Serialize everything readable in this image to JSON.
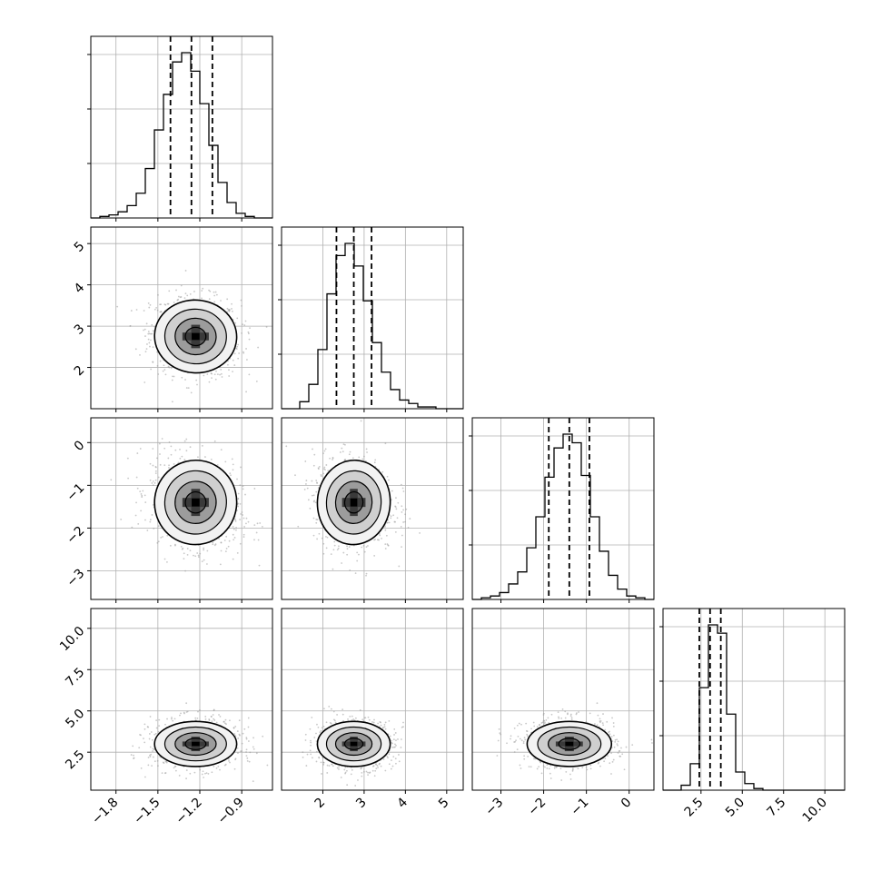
{
  "chart_data": {
    "type": "corner",
    "grid": true,
    "parameters": [
      {
        "index": 0,
        "range": [
          -1.98,
          -0.68
        ],
        "ticks": [
          -1.8,
          -1.5,
          -1.2,
          -0.9
        ],
        "tick_labels": [
          "−1.8",
          "−1.5",
          "−1.2",
          "−0.9"
        ],
        "quantiles": [
          -1.41,
          -1.26,
          -1.11
        ],
        "peak": -1.23,
        "sd": 0.14
      },
      {
        "index": 1,
        "range": [
          1.0,
          5.4
        ],
        "ticks": [
          2,
          3,
          4,
          5
        ],
        "tick_labels": [
          "2",
          "3",
          "4",
          "5"
        ],
        "quantiles": [
          2.33,
          2.75,
          3.18
        ],
        "peak": 2.75,
        "sd": 0.42
      },
      {
        "index": 2,
        "range": [
          -3.67,
          0.58
        ],
        "ticks": [
          -3,
          -2,
          -1,
          0
        ],
        "tick_labels": [
          "−3",
          "−2",
          "−1",
          "0"
        ],
        "quantiles": [
          -1.88,
          -1.4,
          -0.93
        ],
        "peak": -1.4,
        "sd": 0.47
      },
      {
        "index": 3,
        "range": [
          0.2,
          11.2
        ],
        "ticks": [
          2.5,
          5.0,
          7.5,
          10.0
        ],
        "tick_labels": [
          "2.5",
          "5.0",
          "7.5",
          "10.0"
        ],
        "quantiles": [
          2.4,
          3.05,
          3.7
        ],
        "peak": 3.0,
        "sd": 0.65
      }
    ],
    "histograms": [
      {
        "param": 0,
        "bin_edges": [
          -1.98,
          -1.915,
          -1.85,
          -1.785,
          -1.72,
          -1.655,
          -1.59,
          -1.525,
          -1.46,
          -1.395,
          -1.33,
          -1.265,
          -1.2,
          -1.135,
          -1.07,
          -1.005,
          -0.94,
          -0.875,
          -0.81,
          -0.745,
          -0.68
        ],
        "counts": [
          0,
          1,
          2,
          4,
          8,
          16,
          32,
          57,
          80,
          101,
          107,
          95,
          74,
          47,
          23,
          10,
          3,
          1,
          0,
          0
        ]
      },
      {
        "param": 1,
        "bin_edges": [
          1.0,
          1.22,
          1.44,
          1.66,
          1.88,
          2.1,
          2.32,
          2.54,
          2.76,
          2.98,
          3.2,
          3.42,
          3.64,
          3.86,
          4.08,
          4.3,
          4.52,
          4.74,
          4.96,
          5.18,
          5.4
        ],
        "counts": [
          0,
          0,
          4,
          14,
          34,
          66,
          88,
          95,
          82,
          62,
          38,
          21,
          11,
          5,
          3,
          1,
          1,
          0,
          0,
          0
        ]
      },
      {
        "param": 2,
        "bin_edges": [
          -3.67,
          -3.4575,
          -3.245,
          -3.0325,
          -2.82,
          -2.6075,
          -2.395,
          -2.1825,
          -1.97,
          -1.7575,
          -1.545,
          -1.3325,
          -1.12,
          -0.9075,
          -0.695,
          -0.4825,
          -0.27,
          -0.0575,
          0.155,
          0.3675,
          0.58
        ],
        "counts": [
          0,
          1,
          2,
          4,
          9,
          16,
          30,
          48,
          71,
          88,
          96,
          91,
          72,
          48,
          28,
          14,
          6,
          2,
          1,
          0
        ]
      },
      {
        "param": 3,
        "bin_edges": [
          0.2,
          0.75,
          1.3,
          1.85,
          2.4,
          2.95,
          3.5,
          4.05,
          4.6,
          5.15,
          5.7,
          6.25,
          6.8,
          7.35,
          7.9,
          8.45,
          9.0,
          9.55,
          10.1,
          10.65,
          11.2
        ],
        "counts": [
          0,
          0,
          3,
          16,
          62,
          100,
          95,
          46,
          11,
          4,
          1,
          0,
          0,
          0,
          0,
          0,
          0,
          0,
          0,
          0
        ]
      }
    ],
    "pairs": [
      {
        "x": 0,
        "y": 1,
        "center": [
          -1.23,
          2.75
        ],
        "corr": -0.1
      },
      {
        "x": 0,
        "y": 2,
        "center": [
          -1.23,
          -1.4
        ],
        "corr": -0.22
      },
      {
        "x": 1,
        "y": 2,
        "center": [
          2.75,
          -1.4
        ],
        "corr": -0.1
      },
      {
        "x": 0,
        "y": 3,
        "center": [
          -1.23,
          3.0
        ],
        "corr": 0.0
      },
      {
        "x": 1,
        "y": 3,
        "center": [
          2.75,
          3.0
        ],
        "corr": 0.0
      },
      {
        "x": 2,
        "y": 3,
        "center": [
          -1.4,
          3.0
        ],
        "corr": 0.0
      }
    ],
    "contour_levels_sigma": [
      0.5,
      1.0,
      1.5,
      2.0
    ]
  }
}
